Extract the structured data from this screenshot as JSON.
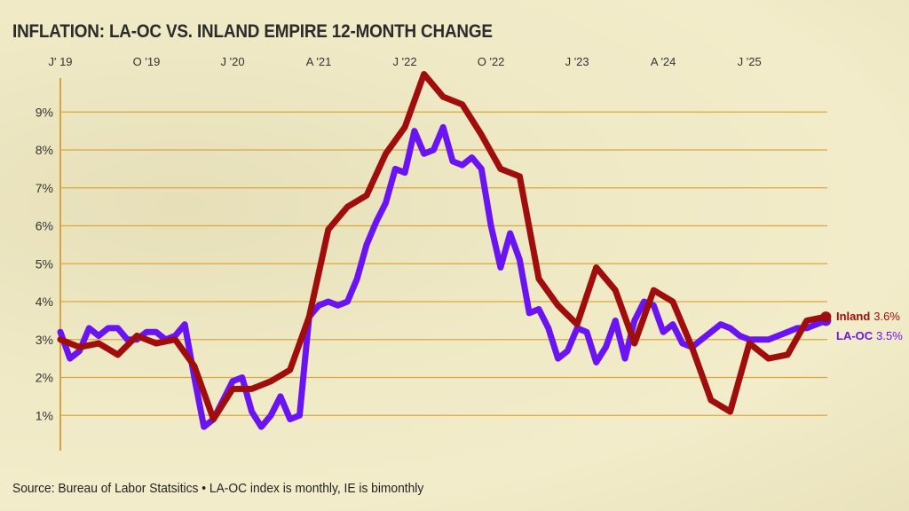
{
  "chart_data": {
    "type": "line",
    "title": "INFLATION: LA-OC VS. INLAND EMPIRE 12-MONTH CHANGE",
    "source": "Source: Bureau of Labor Statsitics • LA-OC index is monthly, IE is bimonthly",
    "x_unit": "month index",
    "xlim": [
      0,
      80
    ],
    "x_ticks": [
      {
        "month": 0,
        "label": "J' 19"
      },
      {
        "month": 9,
        "label": "O '19"
      },
      {
        "month": 18,
        "label": "J '20"
      },
      {
        "month": 27,
        "label": "A '21"
      },
      {
        "month": 36,
        "label": "J '22"
      },
      {
        "month": 45,
        "label": "O '22"
      },
      {
        "month": 54,
        "label": "J '23"
      },
      {
        "month": 63,
        "label": "A '24"
      },
      {
        "month": 72,
        "label": "J '25"
      }
    ],
    "ylim": [
      0,
      10
    ],
    "y_ticks": [
      {
        "value": 1,
        "label": "1%"
      },
      {
        "value": 2,
        "label": "2%"
      },
      {
        "value": 3,
        "label": "3%"
      },
      {
        "value": 4,
        "label": "4%"
      },
      {
        "value": 5,
        "label": "5%"
      },
      {
        "value": 6,
        "label": "6%"
      },
      {
        "value": 7,
        "label": "7%"
      },
      {
        "value": 8,
        "label": "8%"
      },
      {
        "value": 9,
        "label": "9%"
      }
    ],
    "grid": true,
    "series": [
      {
        "name": "LA-OC",
        "color": "#6b14f2",
        "end_label_name": "LA-OC",
        "end_label_value": "3.5%",
        "x_start": 0,
        "x_step": 1,
        "values": [
          3.2,
          2.5,
          2.7,
          3.3,
          3.1,
          3.3,
          3.3,
          3.0,
          3.0,
          3.2,
          3.2,
          3.0,
          3.1,
          3.4,
          2.0,
          0.7,
          0.9,
          1.4,
          1.9,
          2.0,
          1.1,
          0.7,
          1.0,
          1.5,
          0.9,
          1.0,
          3.6,
          3.9,
          4.0,
          3.9,
          4.0,
          4.6,
          5.5,
          6.1,
          6.6,
          7.5,
          7.4,
          8.5,
          7.9,
          8.0,
          8.6,
          7.7,
          7.6,
          7.8,
          7.5,
          6.0,
          4.9,
          5.8,
          5.1,
          3.7,
          3.8,
          3.3,
          2.5,
          2.7,
          3.3,
          3.2,
          2.4,
          2.8,
          3.5,
          2.5,
          3.5,
          4.0,
          3.9,
          3.2,
          3.4,
          2.9,
          2.8,
          3.0,
          3.2,
          3.4,
          3.3,
          3.1,
          3.0,
          3.0,
          3.0,
          3.1,
          3.2,
          3.3,
          3.3,
          3.4,
          3.5
        ]
      },
      {
        "name": "Inland",
        "color": "#a00d0d",
        "end_label_name": "Inland",
        "end_label_value": "3.6%",
        "x_start": 0,
        "x_step": 2,
        "values": [
          3.0,
          2.8,
          2.9,
          2.6,
          3.1,
          2.9,
          3.0,
          2.3,
          0.9,
          1.7,
          1.7,
          1.9,
          2.2,
          3.6,
          5.9,
          6.5,
          6.8,
          7.9,
          8.6,
          10.0,
          9.4,
          9.2,
          8.4,
          7.5,
          7.3,
          4.6,
          3.9,
          3.4,
          4.9,
          4.3,
          2.9,
          4.3,
          4.0,
          2.8,
          1.4,
          1.1,
          2.9,
          2.5,
          2.6,
          3.5,
          3.6
        ]
      }
    ]
  }
}
